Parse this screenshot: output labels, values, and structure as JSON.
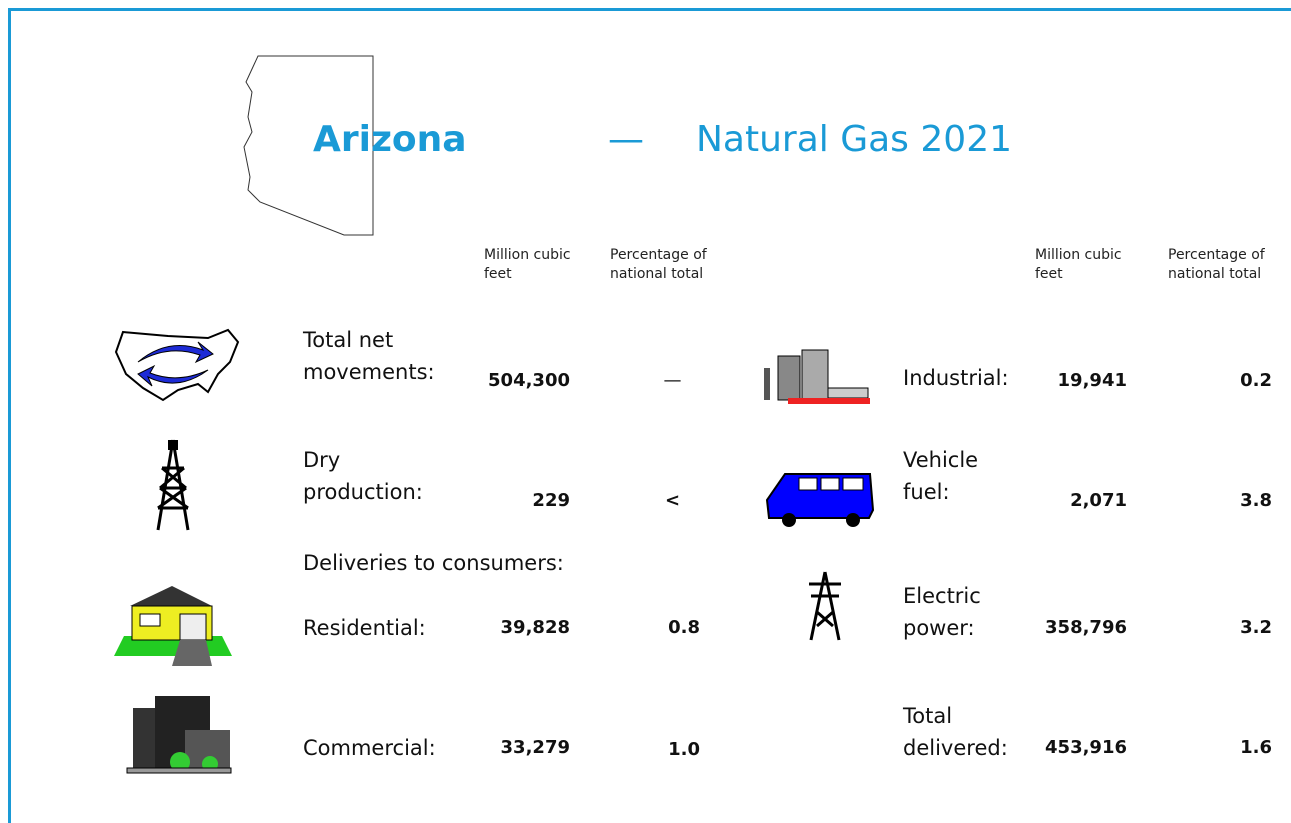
{
  "header": {
    "state": "Arizona",
    "dash": "—",
    "title": "Natural Gas 2021"
  },
  "column_headers": {
    "left": [
      "Million cubic feet",
      "Percentage of national total"
    ],
    "right": [
      "Million cubic feet",
      "Percentage of national total"
    ]
  },
  "left_rows": [
    {
      "label": "Total net movements:",
      "volume": "504,300",
      "percentage": "—"
    },
    {
      "label": "Dry production:",
      "volume": "229",
      "percentage": "<"
    }
  ],
  "deliveries_heading": "Deliveries to consumers:",
  "delivery_rows": [
    {
      "label": "Residential:",
      "volume": "39,828",
      "percentage": "0.8"
    },
    {
      "label": "Commercial:",
      "volume": "33,279",
      "percentage": "1.0"
    }
  ],
  "right_rows": [
    {
      "label": "Industrial:",
      "volume": "19,941",
      "percentage": "0.2"
    },
    {
      "label": "Vehicle fuel:",
      "volume": "2,071",
      "percentage": "3.8"
    },
    {
      "label": "Electric power:",
      "volume": "358,796",
      "percentage": "3.2"
    },
    {
      "label": "Total delivered:",
      "volume": "453,916",
      "percentage": "1.6"
    }
  ]
}
